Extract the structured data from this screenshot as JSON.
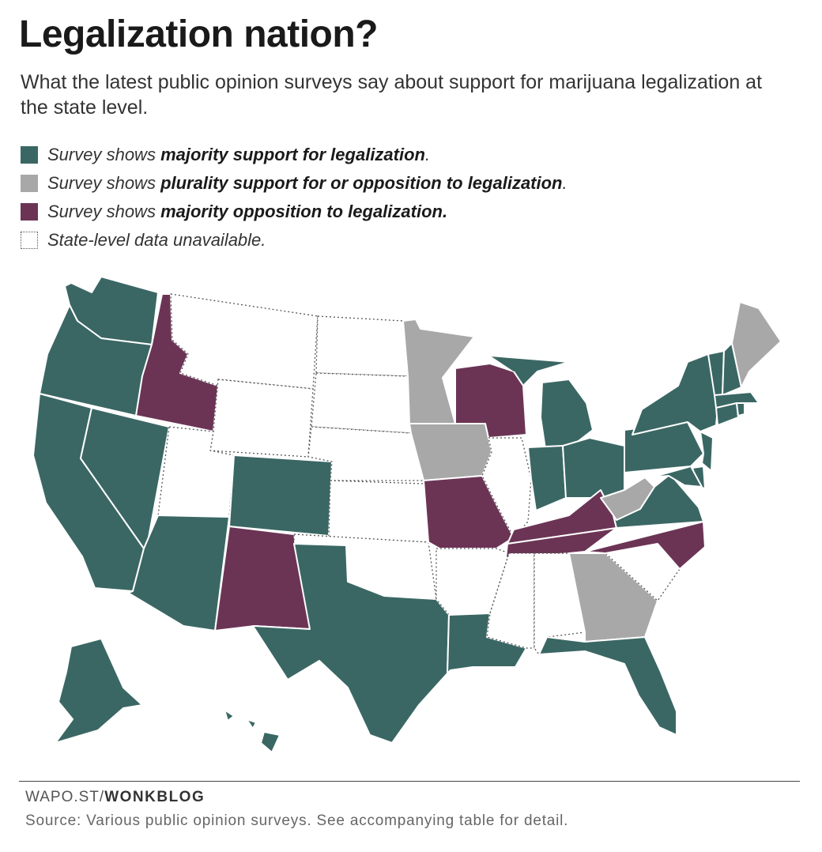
{
  "header": {
    "title": "Legalization nation?",
    "subtitle": "What the latest public opinion surveys say about support for marijuana legalization at the state level."
  },
  "legend": [
    {
      "key": "majority-support",
      "prefix": "Survey shows ",
      "bold": "majority support for legalization",
      "suffix": ".",
      "color": "#3a6764"
    },
    {
      "key": "plurality",
      "prefix": "Survey shows ",
      "bold": "plurality support for or opposition to legalization",
      "suffix": ".",
      "color": "#a8a8a8"
    },
    {
      "key": "majority-opposition",
      "prefix": "Survey shows ",
      "bold": "majority opposition to legalization.",
      "suffix": "",
      "color": "#6b3455"
    },
    {
      "key": "unavailable",
      "prefix": "",
      "bold": "",
      "suffix": "",
      "text": "State-level data unavailable.",
      "color": "#ffffff"
    }
  ],
  "map_data": {
    "categories": {
      "support": "#3a6764",
      "plurality": "#a8a8a8",
      "oppose": "#6b3455",
      "na": "#ffffff"
    },
    "states": {
      "WA": "support",
      "OR": "support",
      "CA": "support",
      "NV": "support",
      "ID": "oppose",
      "MT": "na",
      "WY": "na",
      "UT": "na",
      "AZ": "support",
      "CO": "support",
      "NM": "oppose",
      "ND": "na",
      "SD": "na",
      "NE": "na",
      "KS": "na",
      "OK": "na",
      "TX": "support",
      "MN": "plurality",
      "IA": "plurality",
      "MO": "oppose",
      "AR": "na",
      "LA": "support",
      "WI": "oppose",
      "IL": "na",
      "MI": "support",
      "IN": "support",
      "OH": "support",
      "KY": "oppose",
      "TN": "oppose",
      "MS": "na",
      "AL": "na",
      "GA": "plurality",
      "FL": "support",
      "SC": "na",
      "NC": "oppose",
      "VA": "support",
      "WV": "plurality",
      "PA": "support",
      "NY": "support",
      "NJ": "support",
      "DE": "support",
      "MD": "support",
      "VT": "support",
      "NH": "support",
      "ME": "plurality",
      "MA": "support",
      "CT": "support",
      "RI": "support",
      "AK": "support",
      "HI": "support"
    }
  },
  "footer": {
    "credit_prefix": "WAPO.ST/",
    "credit_bold": "WONKBLOG",
    "source": "Source: Various public opinion surveys. See accompanying table for detail."
  }
}
